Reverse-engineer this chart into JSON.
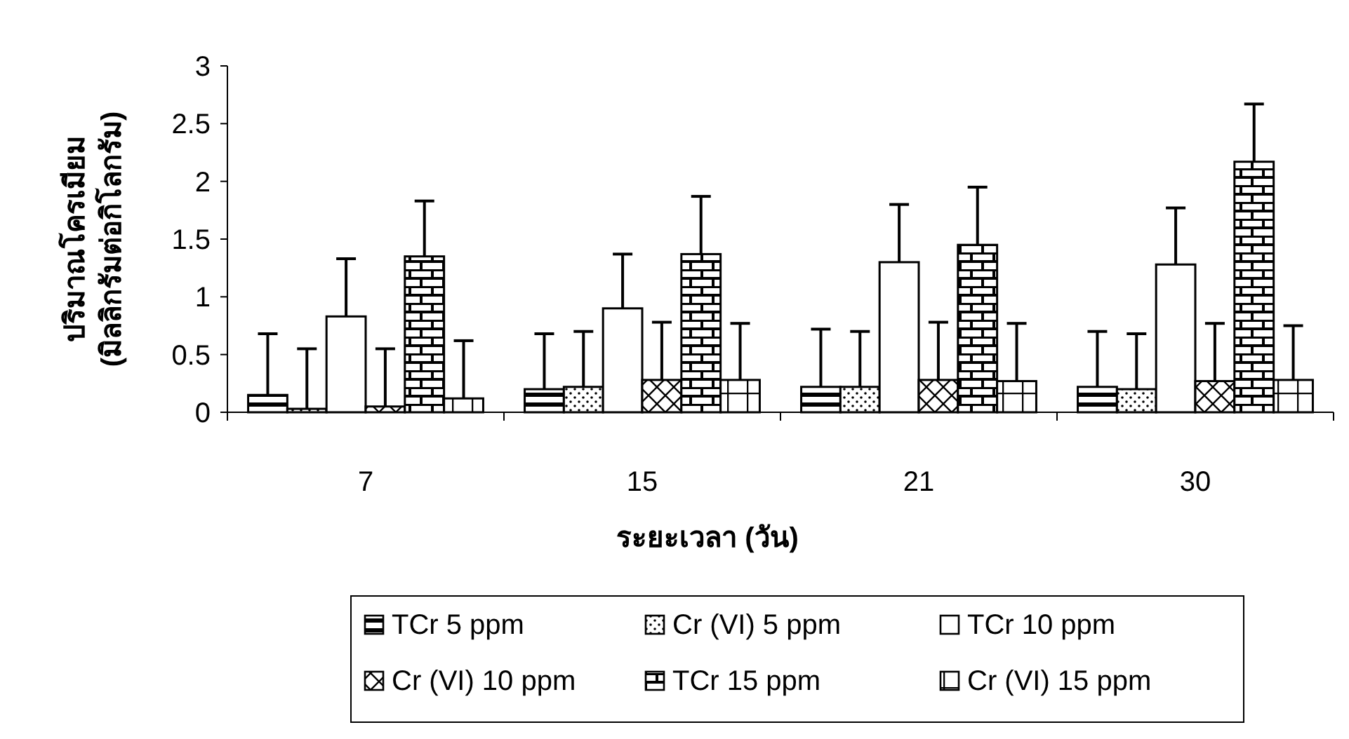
{
  "chart_data": {
    "type": "bar",
    "xlabel": "ระยะเวลา (วัน)",
    "ylabel": "ปริมาณโครเมียม\n(มิลลิกรัมต่อกิโลกรัม)",
    "categories": [
      "7",
      "15",
      "21",
      "30"
    ],
    "ylim": [
      0,
      3
    ],
    "yticks": [
      0,
      0.5,
      1,
      1.5,
      2,
      2.5,
      3
    ],
    "grid": false,
    "legend": "bottom",
    "series": [
      {
        "name": "TCr 5 ppm",
        "color": "#000000",
        "values": [
          0.15,
          0.2,
          0.22,
          0.22
        ],
        "errors": [
          [
            0.15,
            0.68
          ],
          [
            0.2,
            0.68
          ],
          [
            0.22,
            0.72
          ],
          [
            0.22,
            0.7
          ]
        ]
      },
      {
        "name": "Cr (VI) 5 ppm",
        "color": "#000000",
        "values": [
          0.03,
          0.22,
          0.22,
          0.2
        ],
        "errors": [
          [
            0.03,
            0.55
          ],
          [
            0.22,
            0.7
          ],
          [
            0.22,
            0.7
          ],
          [
            0.2,
            0.68
          ]
        ]
      },
      {
        "name": "TCr 10 ppm",
        "color": "#ffffff",
        "values": [
          0.83,
          0.9,
          1.3,
          1.28
        ],
        "errors": [
          [
            0.83,
            1.33
          ],
          [
            0.9,
            1.37
          ],
          [
            1.3,
            1.8
          ],
          [
            1.28,
            1.77
          ]
        ]
      },
      {
        "name": "Cr (VI) 10 ppm",
        "color": "#000000",
        "values": [
          0.05,
          0.28,
          0.28,
          0.27
        ],
        "errors": [
          [
            0.05,
            0.55
          ],
          [
            0.28,
            0.78
          ],
          [
            0.28,
            0.78
          ],
          [
            0.27,
            0.77
          ]
        ]
      },
      {
        "name": "TCr 15 ppm",
        "color": "#000000",
        "values": [
          1.35,
          1.37,
          1.45,
          2.17
        ],
        "errors": [
          [
            1.35,
            1.83
          ],
          [
            1.37,
            1.87
          ],
          [
            1.45,
            1.95
          ],
          [
            2.17,
            2.67
          ]
        ]
      },
      {
        "name": "Cr (VI) 15 ppm",
        "color": "#000000",
        "values": [
          0.12,
          0.28,
          0.27,
          0.28
        ],
        "errors": [
          [
            0.12,
            0.62
          ],
          [
            0.28,
            0.77
          ],
          [
            0.27,
            0.77
          ],
          [
            0.28,
            0.75
          ]
        ]
      }
    ]
  }
}
